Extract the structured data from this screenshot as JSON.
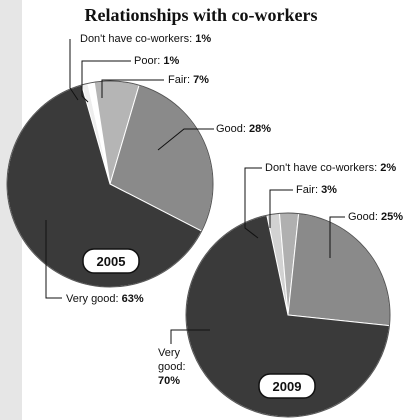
{
  "chart_data": [
    {
      "type": "pie",
      "title": "Relationships with co-workers",
      "year": "2005",
      "start_angle": -16,
      "slices": [
        {
          "name": "Don't have  co-workers",
          "label": "Don't have  co-workers:",
          "value": 1,
          "value_label": "1%",
          "color": "#eeeeee"
        },
        {
          "name": "Poor",
          "label": "Poor:",
          "value": 1,
          "value_label": "1%",
          "color": "#ffffff"
        },
        {
          "name": "Fair",
          "label": "Fair:",
          "value": 7,
          "value_label": "7%",
          "color": "#b5b5b5"
        },
        {
          "name": "Good",
          "label": "Good:",
          "value": 28,
          "value_label": "28%",
          "color": "#8a8a8a"
        },
        {
          "name": "Very good",
          "label": "Very good:",
          "value": 63,
          "value_label": "63%",
          "color": "#3a3a3a"
        }
      ]
    },
    {
      "type": "pie",
      "year": "2009",
      "start_angle": -12,
      "slices": [
        {
          "name": "Don't have co-workers",
          "label": "Don't have co-workers:",
          "value": 2,
          "value_label": "2%",
          "color": "#d2d2d2"
        },
        {
          "name": "Fair",
          "label": "Fair:",
          "value": 3,
          "value_label": "3%",
          "color": "#b0b0b0"
        },
        {
          "name": "Good",
          "label": "Good:",
          "value": 25,
          "value_label": "25%",
          "color": "#8a8a8a"
        },
        {
          "name": "Very good",
          "label": "Very",
          "label2": "good:",
          "value": 70,
          "value_label": "70%",
          "color": "#3a3a3a"
        }
      ]
    }
  ]
}
